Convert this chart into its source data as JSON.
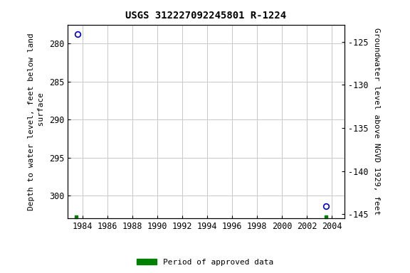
{
  "title": "USGS 312227092245801 R-1224",
  "point1": {
    "year": 1983.6,
    "depth": 278.8
  },
  "point2": {
    "year": 2003.5,
    "depth": 301.4
  },
  "green_sq1": {
    "year": 1983.5,
    "depth": 302.8
  },
  "green_sq2": {
    "year": 2003.5,
    "depth": 302.8
  },
  "xlim": [
    1982.8,
    2005.0
  ],
  "xticks": [
    1984,
    1986,
    1988,
    1990,
    1992,
    1994,
    1996,
    1998,
    2000,
    2002,
    2004
  ],
  "ylim_left_bottom": 303.0,
  "ylim_left_top": 277.5,
  "ylim_right_bottom": -145.5,
  "ylim_right_top": -123.0,
  "yticks_left": [
    280,
    285,
    290,
    295,
    300
  ],
  "yticks_right": [
    -125,
    -130,
    -135,
    -140,
    -145
  ],
  "ylabel_left": "Depth to water level, feet below land\n     surface",
  "ylabel_right": "Groundwater level above NGVD 1929, feet",
  "legend_label": "Period of approved data",
  "legend_color": "#008000",
  "point_color": "#0000cc",
  "bg_color": "#ffffff",
  "grid_color": "#c8c8c8",
  "title_fontsize": 10,
  "label_fontsize": 8,
  "tick_fontsize": 8.5
}
